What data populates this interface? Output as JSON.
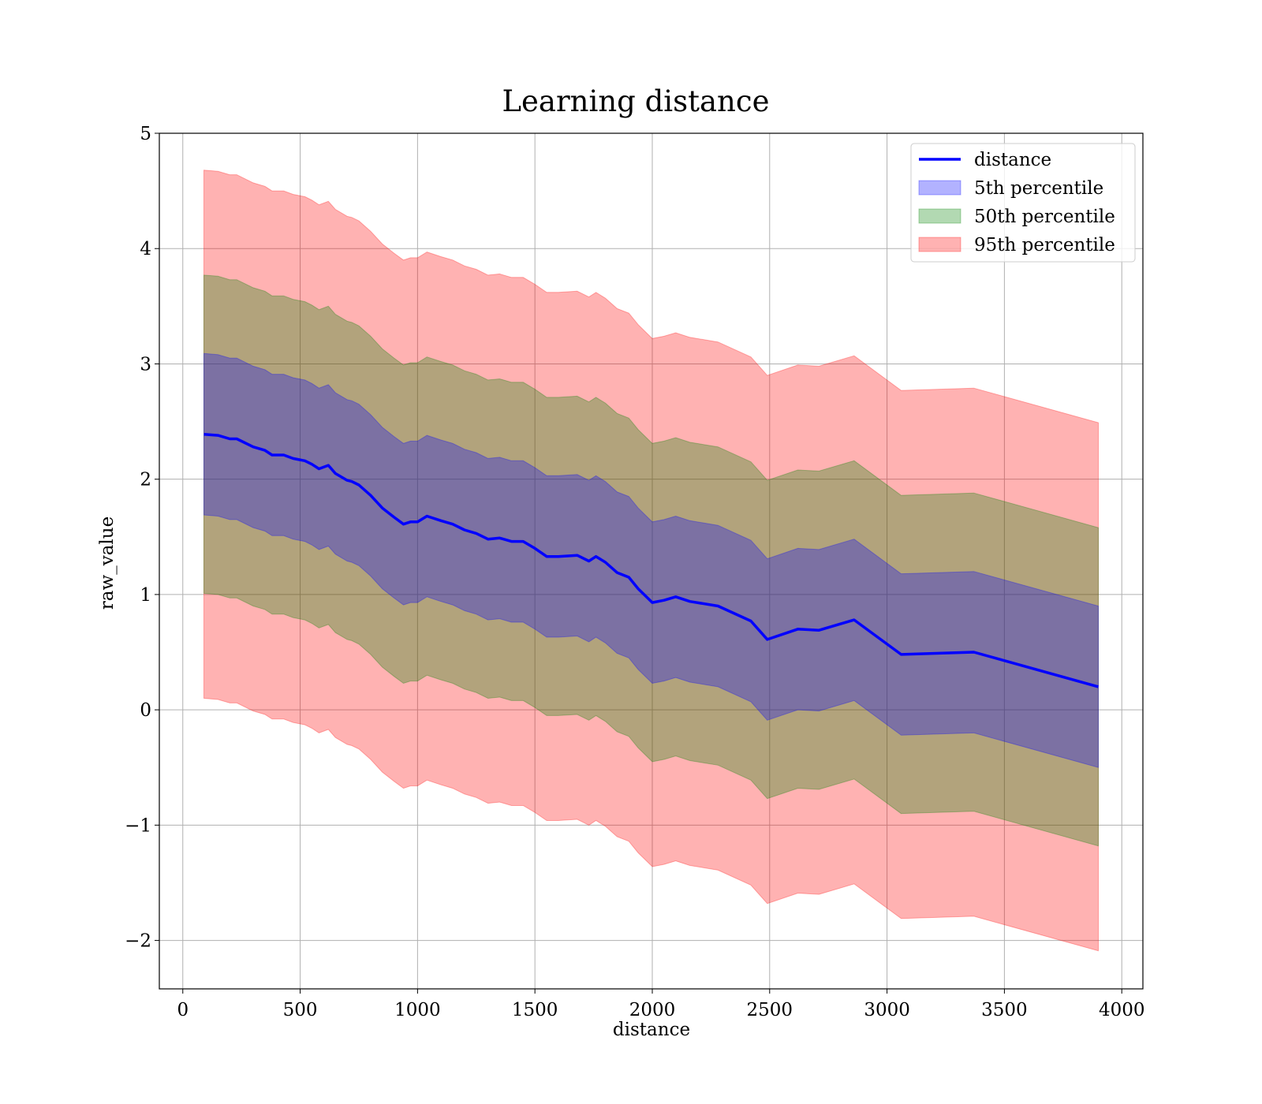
{
  "chart_data": {
    "type": "area",
    "title": "Learning distance",
    "xlabel": "distance",
    "ylabel": "raw_value",
    "xlim": [
      -100,
      4090
    ],
    "ylim": [
      -2.42,
      5.0
    ],
    "xticks": [
      0,
      500,
      1000,
      1500,
      2000,
      2500,
      3000,
      3500,
      4000
    ],
    "yticks": [
      -2,
      -1,
      0,
      1,
      2,
      3,
      4,
      5
    ],
    "xtick_labels": [
      "0",
      "500",
      "1000",
      "1500",
      "2000",
      "2500",
      "3000",
      "3500",
      "4000"
    ],
    "ytick_labels": [
      "−2",
      "−1",
      "0",
      "1",
      "2",
      "3",
      "4",
      "5"
    ],
    "grid": true,
    "legend_position": "top-right",
    "x": [
      90,
      150,
      200,
      230,
      300,
      350,
      380,
      430,
      470,
      520,
      550,
      580,
      620,
      650,
      700,
      720,
      750,
      800,
      850,
      900,
      940,
      970,
      1000,
      1040,
      1100,
      1150,
      1200,
      1250,
      1300,
      1350,
      1400,
      1450,
      1500,
      1550,
      1600,
      1680,
      1730,
      1760,
      1800,
      1850,
      1900,
      1940,
      2000,
      2050,
      2100,
      2160,
      2280,
      2420,
      2490,
      2620,
      2710,
      2860,
      3060,
      3370,
      3900
    ],
    "series": [
      {
        "name": "distance",
        "kind": "line",
        "color": "#0000ff",
        "values": [
          2.39,
          2.38,
          2.35,
          2.35,
          2.28,
          2.25,
          2.21,
          2.21,
          2.18,
          2.16,
          2.13,
          2.09,
          2.12,
          2.05,
          1.99,
          1.98,
          1.95,
          1.86,
          1.75,
          1.67,
          1.61,
          1.63,
          1.63,
          1.68,
          1.64,
          1.61,
          1.56,
          1.53,
          1.48,
          1.49,
          1.46,
          1.46,
          1.4,
          1.33,
          1.33,
          1.34,
          1.29,
          1.33,
          1.28,
          1.19,
          1.15,
          1.05,
          0.93,
          0.95,
          0.98,
          0.94,
          0.9,
          0.77,
          0.61,
          0.7,
          0.69,
          0.78,
          0.48,
          0.5,
          0.2
        ]
      },
      {
        "name": "5th percentile",
        "kind": "band",
        "color": "#0000ff",
        "half_width": 0.7
      },
      {
        "name": "50th percentile",
        "kind": "band",
        "color": "#008000",
        "half_width": 1.38
      },
      {
        "name": "95th percentile",
        "kind": "band",
        "color": "#ff0000",
        "half_width": 2.29
      }
    ]
  }
}
